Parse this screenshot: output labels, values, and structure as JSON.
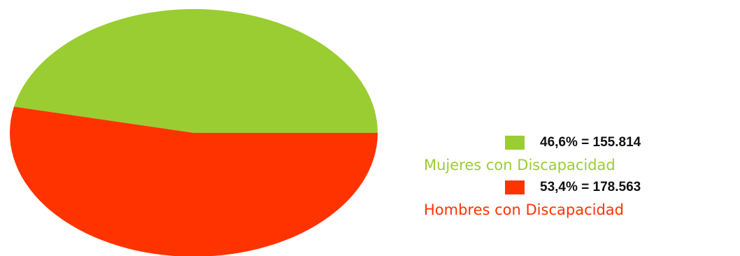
{
  "chart_data": {
    "type": "pie",
    "title": "",
    "legend_position": "right",
    "slices": [
      {
        "name": "Mujeres con Discapacidad",
        "percent": 46.6,
        "value": 155814,
        "value_label": "46,6% = 155.814",
        "color": "#9acd32"
      },
      {
        "name": "Hombres con Discapacidad",
        "percent": 53.4,
        "value": 178563,
        "value_label": "53,4% = 178.563",
        "color": "#ff3300"
      }
    ]
  }
}
